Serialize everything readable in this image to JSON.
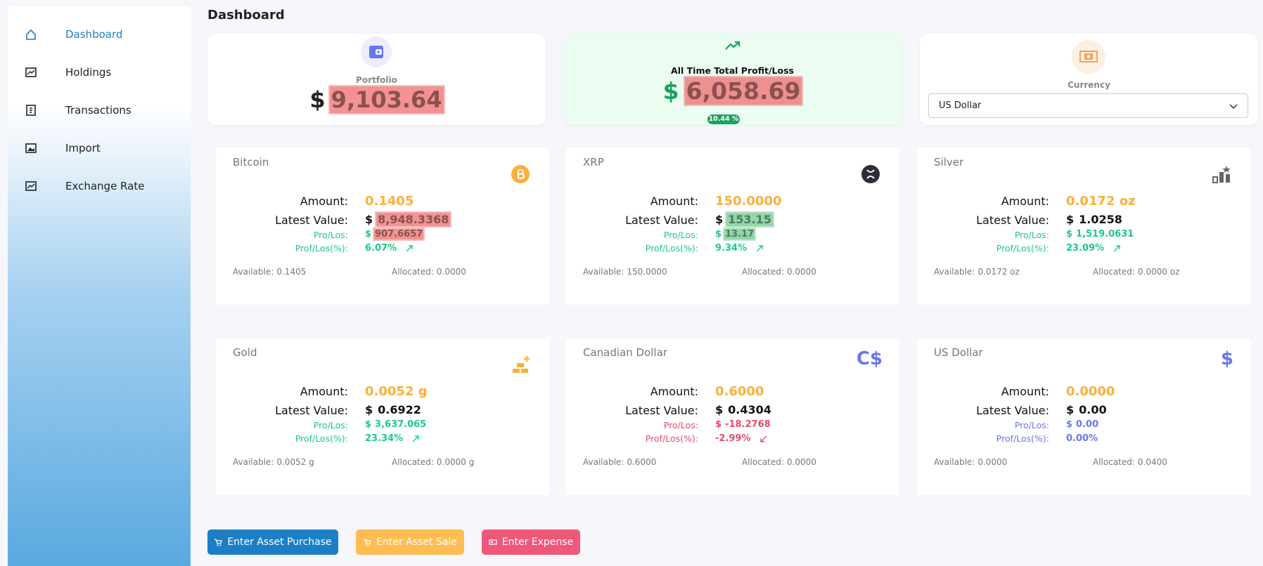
{
  "sidebar": {
    "items": [
      "Dashboard",
      "Holdings",
      "Transactions",
      "Import",
      "Exchange Rate"
    ],
    "active": 0
  },
  "header": {
    "title": "Dashboard"
  },
  "summary": {
    "currency_symbol": "$",
    "portfolio": {
      "label": "Portfolio",
      "value": "9,103.64"
    },
    "profit": {
      "label": "All Time Total Profit/Loss",
      "value": "6,058.69",
      "percent": "10.44 %"
    },
    "currency": {
      "label": "Currency",
      "selected": "US Dollar"
    }
  },
  "labels": {
    "amount": "Amount:",
    "latest": "Latest Value:",
    "pl": "Pro/Los:",
    "plp": "Prof/Los(%):",
    "available": "Available:",
    "allocated": "Allocated:",
    "currency_symbol": "$"
  },
  "assets": [
    {
      "name": "Bitcoin",
      "icon": "bitcoin",
      "amount": "0.1405",
      "latest": "8,948.3368",
      "pl": "907.6657",
      "plp": "6.07%",
      "available": "0.1405",
      "allocated": "0.0000",
      "trend": "up",
      "highlight": "red"
    },
    {
      "name": "XRP",
      "icon": "xrp",
      "amount": "150.0000",
      "latest": "153.15",
      "pl": "13.17",
      "plp": "9.34%",
      "available": "150.0000",
      "allocated": "0.0000",
      "trend": "up",
      "highlight": "green"
    },
    {
      "name": "Silver",
      "icon": "silver",
      "amount": "0.0172 oz",
      "latest": "1.0258",
      "pl": "1,519.0631",
      "plp": "23.09%",
      "available": "0.0172 oz",
      "allocated": "0.0000 oz",
      "trend": "up"
    },
    {
      "name": "Gold",
      "icon": "gold",
      "amount": "0.0052 g",
      "latest": "0.6922",
      "pl": "3,637.065",
      "plp": "23.34%",
      "available": "0.0052 g",
      "allocated": "0.0000 g",
      "trend": "up"
    },
    {
      "name": "Canadian Dollar",
      "icon": "text",
      "icon_text": "C$",
      "amount": "0.6000",
      "latest": "0.4304",
      "pl": "-18.2768",
      "plp": "-2.99%",
      "available": "0.6000",
      "allocated": "0.0000",
      "trend": "down"
    },
    {
      "name": "US Dollar",
      "icon": "text",
      "icon_text": "$",
      "amount": "0.0000",
      "latest": "0.00",
      "pl": "0.00",
      "plp": "0.00%",
      "available": "0.0000",
      "allocated": "0.0400",
      "trend": "flat"
    }
  ],
  "buttons": [
    "Enter Asset Purchase",
    "Enter Asset Sale",
    "Enter Expense"
  ]
}
